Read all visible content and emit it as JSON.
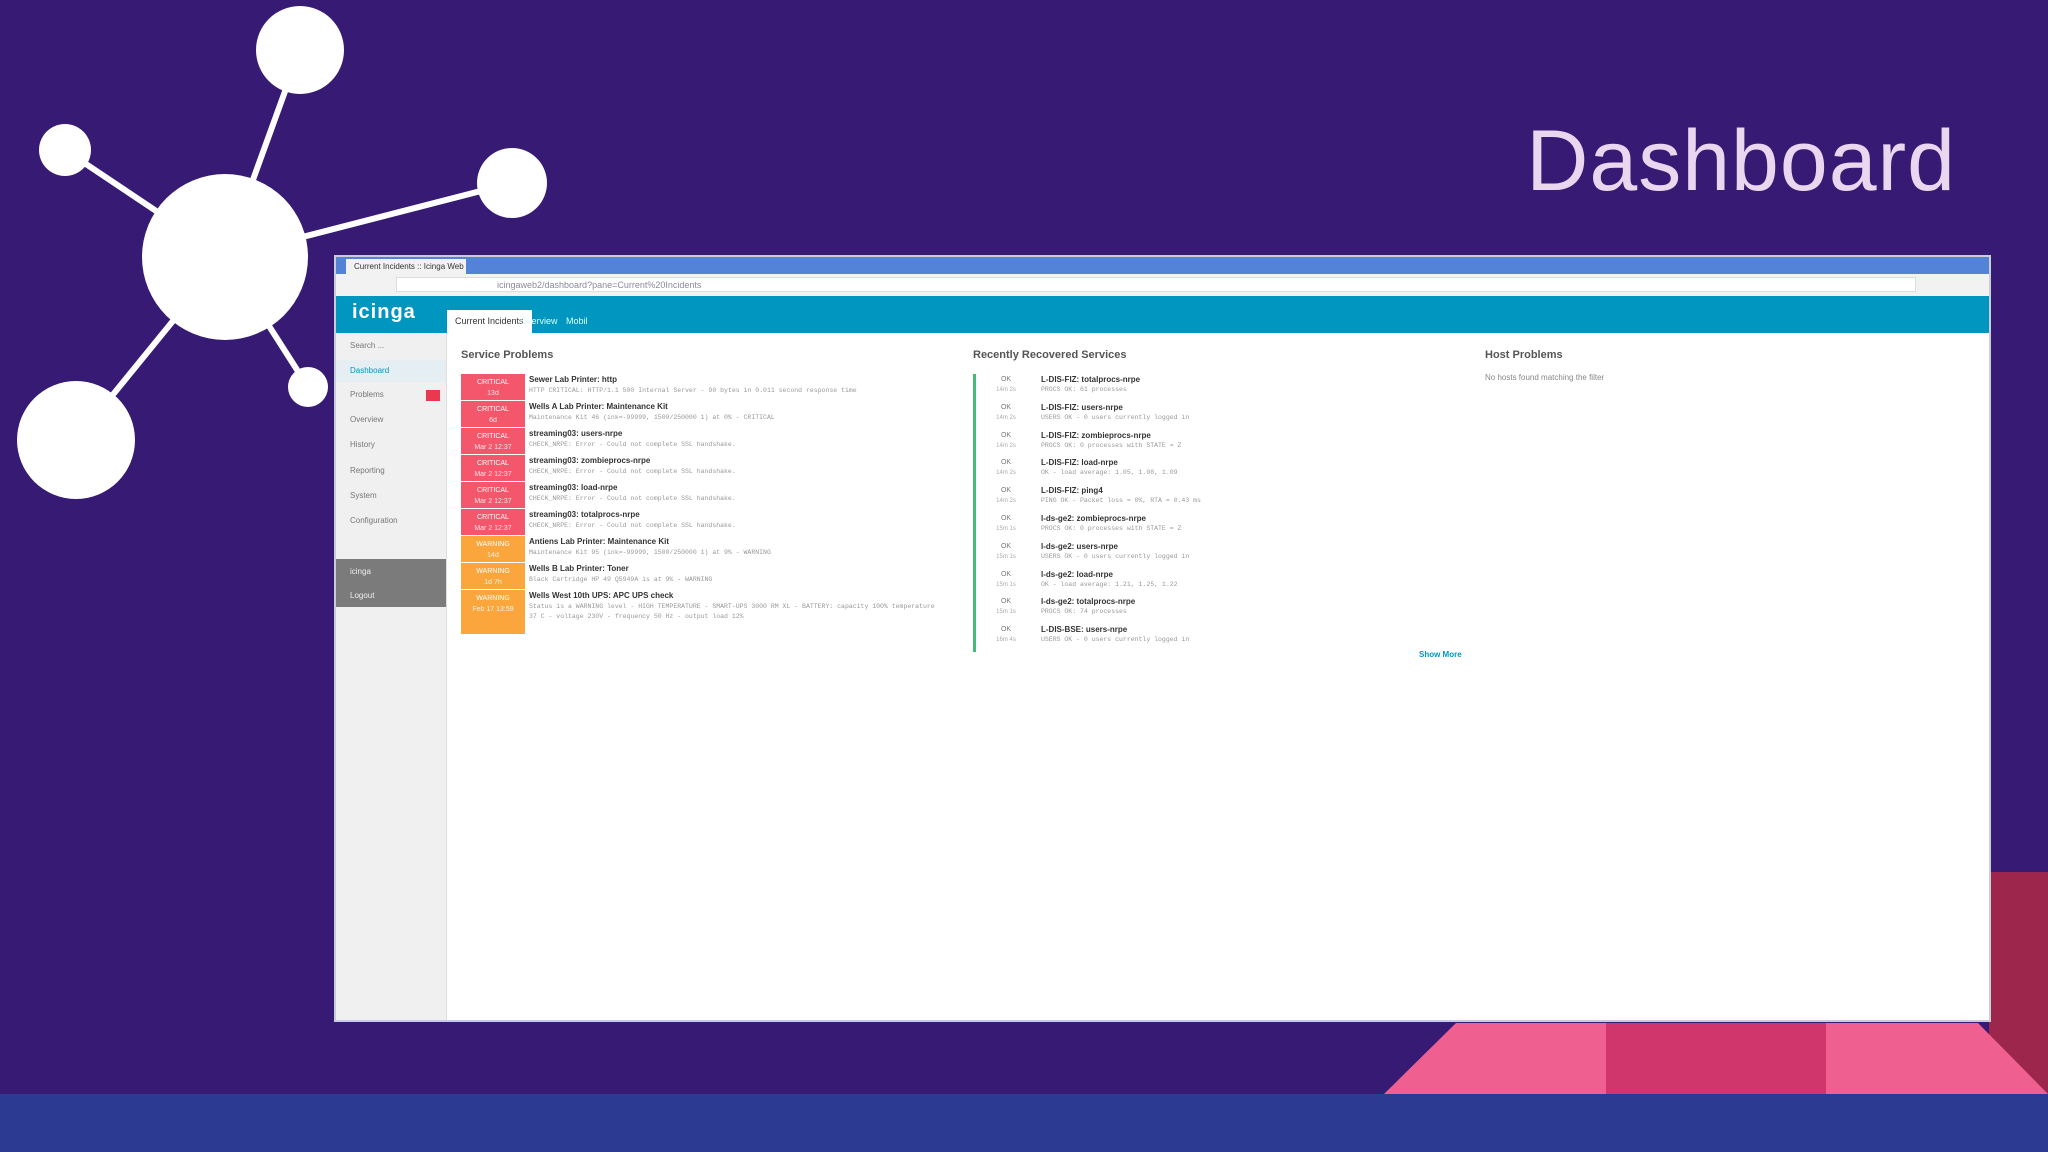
{
  "header": {
    "title": "Dashboard"
  },
  "browser": {
    "tab_title": "Current Incidents :: Icinga Web",
    "url": "icingaweb2/dashboard?pane=Current%20Incidents"
  },
  "app": {
    "logo": "icinga",
    "tabs": [
      "Current Incidents",
      "Overview",
      "Mobil"
    ]
  },
  "sidebar": {
    "items": [
      "Search ...",
      "Dashboard",
      "Problems",
      "Overview",
      "History",
      "Reporting",
      "System",
      "Configuration"
    ],
    "admin_items": [
      "icinga",
      "Logout"
    ]
  },
  "service_problems": {
    "title": "Service Problems",
    "rows": [
      {
        "state": "CRITICAL",
        "since": "13d",
        "color": "#f4566b",
        "name": "Sewer Lab Printer: http",
        "output": "HTTP CRITICAL: HTTP/1.1 500 Internal Server - 90 bytes in 0.011 second response time"
      },
      {
        "state": "CRITICAL",
        "since": "6d",
        "color": "#f4566b",
        "name": "Wells A Lab Printer: Maintenance Kit",
        "output": "Maintenance Kit 46 (ink=-99999, 1500/250000 1) at 0% - CRITICAL"
      },
      {
        "state": "CRITICAL",
        "since": "Mar 2 12:37",
        "color": "#f4566b",
        "name": "streaming03: users-nrpe",
        "output": "CHECK_NRPE: Error - Could not complete SSL handshake."
      },
      {
        "state": "CRITICAL",
        "since": "Mar 2 12:37",
        "color": "#f4566b",
        "name": "streaming03: zombieprocs-nrpe",
        "output": "CHECK_NRPE: Error - Could not complete SSL handshake."
      },
      {
        "state": "CRITICAL",
        "since": "Mar 2 12:37",
        "color": "#f4566b",
        "name": "streaming03: load-nrpe",
        "output": "CHECK_NRPE: Error - Could not complete SSL handshake."
      },
      {
        "state": "CRITICAL",
        "since": "Mar 2 12:37",
        "color": "#f4566b",
        "name": "streaming03: totalprocs-nrpe",
        "output": "CHECK_NRPE: Error - Could not complete SSL handshake."
      },
      {
        "state": "WARNING",
        "since": "14d",
        "color": "#fba63c",
        "name": "Antiens Lab Printer: Maintenance Kit",
        "output": "Maintenance Kit 95 (ink=-99999, 1500/250000 1) at 9% - WARNING"
      },
      {
        "state": "WARNING",
        "since": "1d 7h",
        "color": "#fba63c",
        "name": "Wells B Lab Printer: Toner",
        "output": "Black Cartridge HP 49 Q5949A is at 9% - WARNING"
      },
      {
        "state": "WARNING",
        "since": "Feb 17 13:59",
        "color": "#fba63c",
        "name": "Wells West 10th UPS: APC UPS check",
        "output": "Status is a WARNING level - HIGH TEMPERATURE - SMART-UPS 3000 RM XL - BATTERY: capacity 100% temperature 37 C - voltage 230V - frequency 50 Hz - output load 12%"
      }
    ]
  },
  "recovered": {
    "title": "Recently Recovered Services",
    "rows": [
      {
        "state": "OK",
        "since": "14m 2s",
        "name": "L-DIS-FIZ: totalprocs-nrpe",
        "output": "PROCS OK: 61 processes"
      },
      {
        "state": "OK",
        "since": "14m 2s",
        "name": "L-DIS-FIZ: users-nrpe",
        "output": "USERS OK - 0 users currently logged in"
      },
      {
        "state": "OK",
        "since": "14m 2s",
        "name": "L-DIS-FIZ: zombieprocs-nrpe",
        "output": "PROCS OK: 0 processes with STATE = Z"
      },
      {
        "state": "OK",
        "since": "14m 2s",
        "name": "L-DIS-FIZ: load-nrpe",
        "output": "OK - load average: 1.05, 1.08, 1.09"
      },
      {
        "state": "OK",
        "since": "14m 2s",
        "name": "L-DIS-FIZ: ping4",
        "output": "PING OK - Packet loss = 0%, RTA = 0.43 ms"
      },
      {
        "state": "OK",
        "since": "15m 1s",
        "name": "l-ds-ge2: zombieprocs-nrpe",
        "output": "PROCS OK: 0 processes with STATE = Z"
      },
      {
        "state": "OK",
        "since": "15m 1s",
        "name": "l-ds-ge2: users-nrpe",
        "output": "USERS OK - 0 users currently logged in"
      },
      {
        "state": "OK",
        "since": "15m 1s",
        "name": "l-ds-ge2: load-nrpe",
        "output": "OK - load average: 1.21, 1.25, 1.22"
      },
      {
        "state": "OK",
        "since": "15m 1s",
        "name": "l-ds-ge2: totalprocs-nrpe",
        "output": "PROCS OK: 74 processes"
      },
      {
        "state": "OK",
        "since": "16m 4s",
        "name": "L-DIS-BSE: users-nrpe",
        "output": "USERS OK - 0 users currently logged in"
      }
    ],
    "show_more": "Show More"
  },
  "host_problems": {
    "title": "Host Problems",
    "message": "No hosts found matching the filter"
  }
}
